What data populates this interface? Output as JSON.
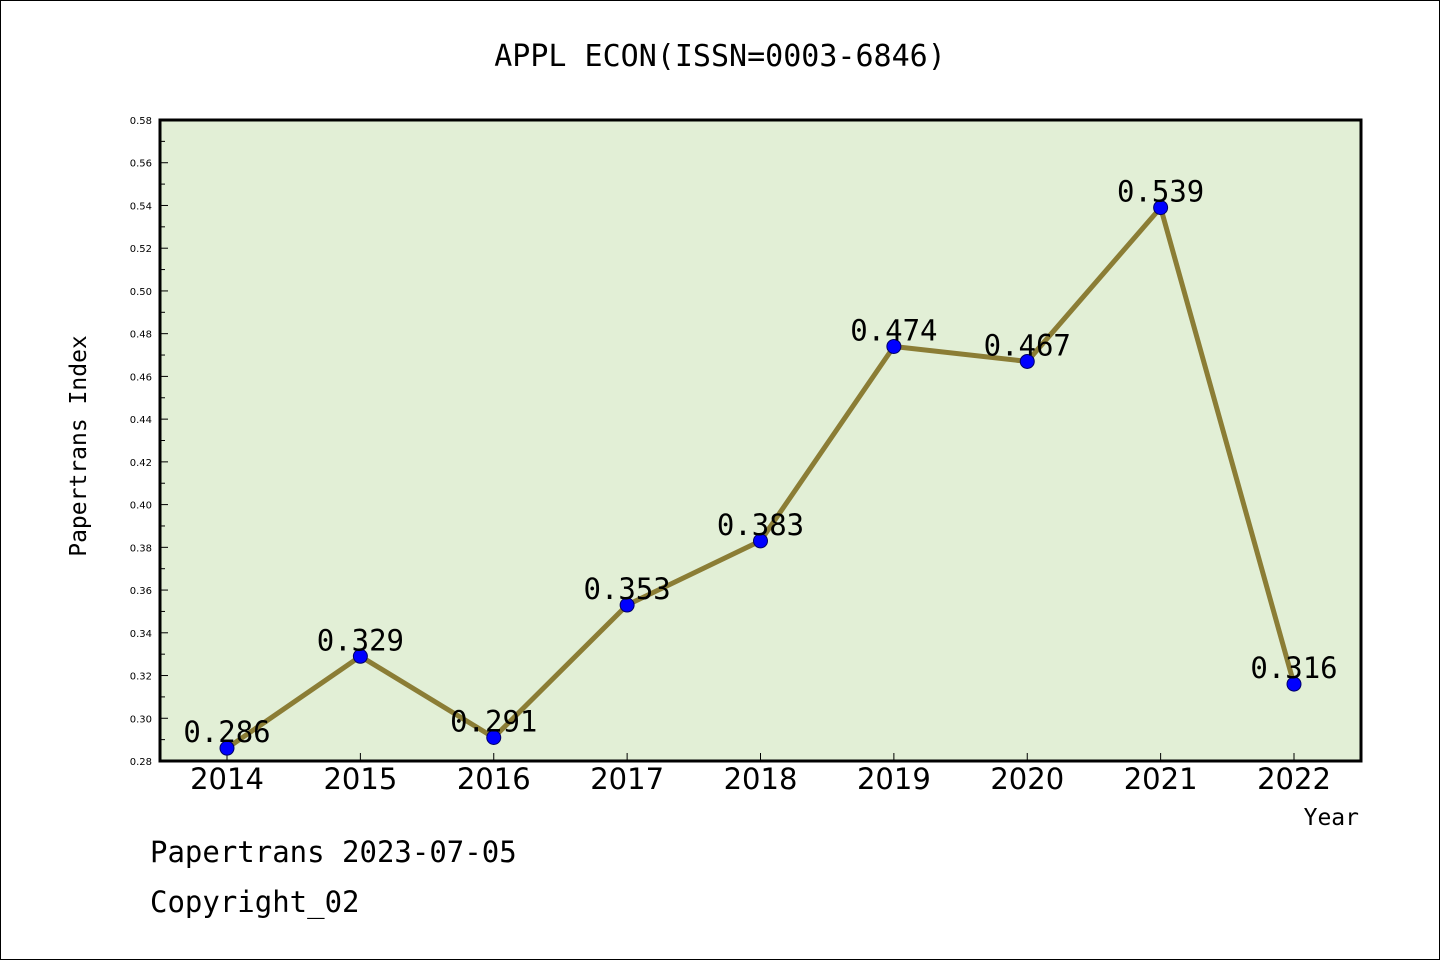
{
  "chart_data": {
    "type": "line",
    "title": "APPL ECON(ISSN=0003-6846)",
    "xlabel": "Year",
    "ylabel": "Papertrans Index",
    "categories": [
      "2014",
      "2015",
      "2016",
      "2017",
      "2018",
      "2019",
      "2020",
      "2021",
      "2022"
    ],
    "series": [
      {
        "values": [
          0.286,
          0.329,
          0.291,
          0.353,
          0.383,
          0.474,
          0.467,
          0.539,
          0.316
        ],
        "data_labels": [
          "0.286",
          "0.329",
          "0.291",
          "0.353",
          "0.383",
          "0.474",
          "0.467",
          "0.539",
          "0.316"
        ]
      }
    ],
    "ylim": [
      0.28,
      0.58
    ],
    "yticks": [
      "0.28",
      "0.30",
      "0.32",
      "0.34",
      "0.36",
      "0.38",
      "0.40",
      "0.42",
      "0.44",
      "0.46",
      "0.48",
      "0.50",
      "0.52",
      "0.54",
      "0.56",
      "0.58"
    ],
    "grid": false,
    "legend": "none"
  },
  "footer": {
    "line1": "Papertrans 2023-07-05",
    "line2": "Copyright_02"
  },
  "colors": {
    "plot_background": "#e2efd6",
    "line": "#8b7d35",
    "marker_fill": "#0000ff",
    "marker_edge": "#000066",
    "axis": "#000000"
  }
}
